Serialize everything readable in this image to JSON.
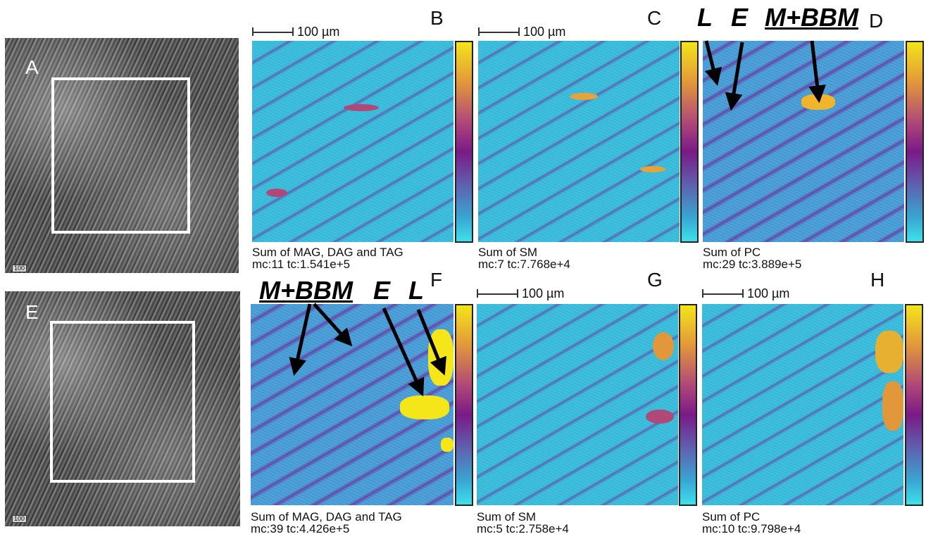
{
  "panel_labels": {
    "a": "A",
    "b": "B",
    "c": "C",
    "d": "D",
    "e": "E",
    "f": "F",
    "g": "G",
    "h": "H"
  },
  "scale_bar_label": "100 µm",
  "micro_scale_label": "100",
  "annotations": {
    "d": {
      "l": "L",
      "e": "E",
      "mbbm": "M+BBM"
    },
    "f": {
      "mbbm": "M+BBM",
      "e": "E",
      "l": "L"
    }
  },
  "captions": {
    "b": {
      "title": "Sum of MAG, DAG and TAG",
      "stats": "mc:11 tc:1.541e+5"
    },
    "c": {
      "title": "Sum of SM",
      "stats": "mc:7 tc:7.768e+4"
    },
    "d": {
      "title": "Sum of PC",
      "stats": "mc:29 tc:3.889e+5"
    },
    "f": {
      "title": "Sum of MAG, DAG and TAG",
      "stats": "mc:39 tc:4.426e+5"
    },
    "g": {
      "title": "Sum of SM",
      "stats": "mc:5 tc:2.758e+4"
    },
    "h": {
      "title": "Sum of PC",
      "stats": "mc:10 tc:9.798e+4"
    }
  },
  "colors": {
    "colormap": [
      "#f4e51a",
      "#e2983a",
      "#b04878",
      "#7a1a86",
      "#5e62b0",
      "#38a6d2",
      "#3ee1ec"
    ],
    "selection_box": "#ffffff",
    "arrow": "#000000"
  }
}
